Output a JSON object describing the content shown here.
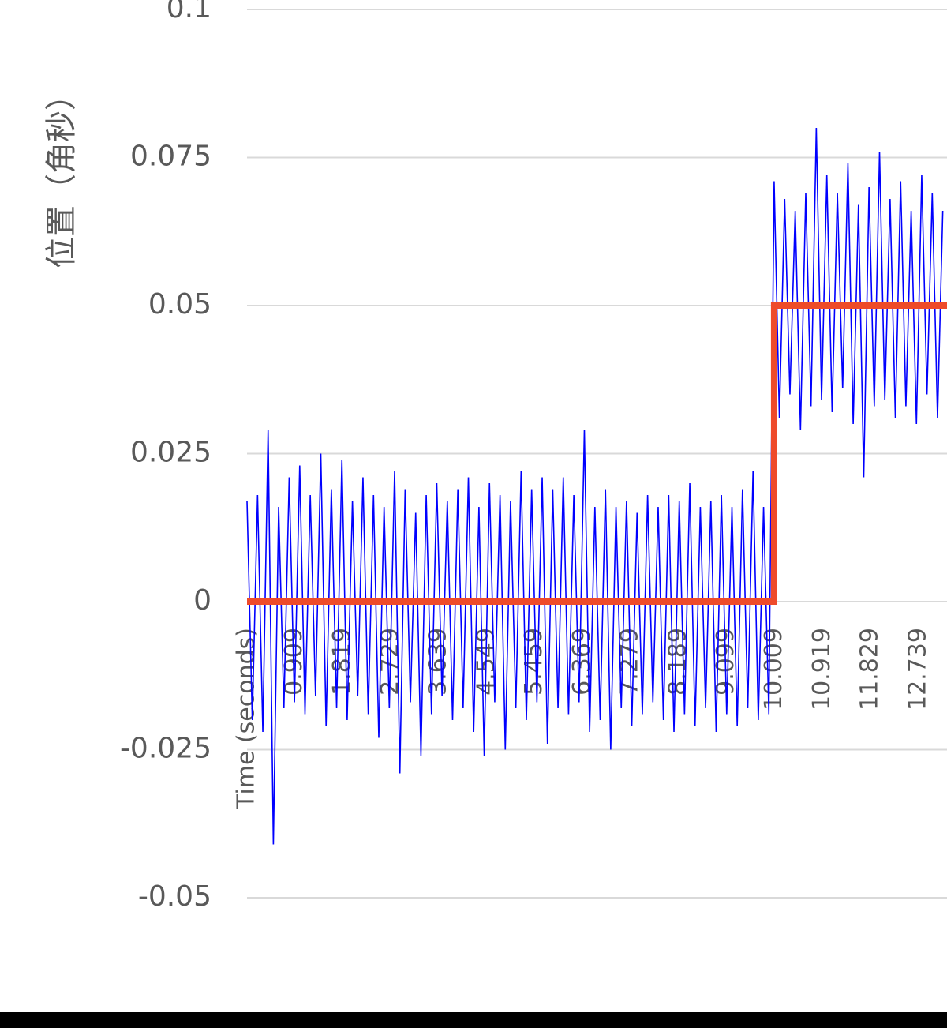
{
  "chart_data": {
    "type": "line",
    "y_label": "位置（角秒）",
    "xlim": [
      0,
      13.28
    ],
    "xticks": [
      {
        "value": 0,
        "label": "Time (seconds)"
      },
      0.909,
      1.819,
      2.729,
      3.639,
      4.549,
      5.459,
      6.369,
      7.279,
      8.189,
      9.099,
      10.009,
      10.919,
      11.829,
      12.739
    ],
    "ylim": [
      -0.05,
      0.1
    ],
    "yticks": [
      -0.05,
      -0.025,
      0,
      0.025,
      0.05,
      0.075,
      0.1
    ],
    "grid": true,
    "series": [
      {
        "color": "#0000ff",
        "x": [
          0,
          0.1,
          0.2,
          0.3,
          0.4,
          0.5,
          0.6,
          0.7,
          0.8,
          0.9,
          1,
          1.1,
          1.2,
          1.3,
          1.4,
          1.5,
          1.6,
          1.7,
          1.8,
          1.9,
          2,
          2.1,
          2.2,
          2.3,
          2.4,
          2.5,
          2.6,
          2.7,
          2.8,
          2.9,
          3,
          3.1,
          3.2,
          3.3,
          3.4,
          3.5,
          3.6,
          3.7,
          3.8,
          3.9,
          4,
          4.1,
          4.2,
          4.3,
          4.4,
          4.5,
          4.6,
          4.7,
          4.8,
          4.9,
          5,
          5.1,
          5.2,
          5.3,
          5.4,
          5.5,
          5.6,
          5.7,
          5.8,
          5.9,
          6,
          6.1,
          6.2,
          6.3,
          6.4,
          6.5,
          6.6,
          6.7,
          6.8,
          6.9,
          7,
          7.1,
          7.2,
          7.3,
          7.4,
          7.5,
          7.6,
          7.7,
          7.8,
          7.9,
          8,
          8.1,
          8.2,
          8.3,
          8.4,
          8.5,
          8.6,
          8.7,
          8.8,
          8.9,
          9,
          9.1,
          9.2,
          9.3,
          9.4,
          9.5,
          9.6,
          9.7,
          9.8,
          9.9,
          10,
          10.1,
          10.2,
          10.3,
          10.4,
          10.5,
          10.6,
          10.7,
          10.8,
          10.9,
          11,
          11.1,
          11.2,
          11.3,
          11.4,
          11.5,
          11.6,
          11.7,
          11.8,
          11.9,
          12,
          12.1,
          12.2,
          12.3,
          12.4,
          12.5,
          12.6,
          12.7,
          12.8,
          12.9,
          13,
          13.1,
          13.2
        ],
        "values": [
          0.017,
          -0.02,
          0.018,
          -0.022,
          0.029,
          -0.041,
          0.016,
          -0.018,
          0.021,
          -0.017,
          0.023,
          -0.019,
          0.018,
          -0.016,
          0.025,
          -0.021,
          0.019,
          -0.018,
          0.024,
          -0.02,
          0.017,
          -0.016,
          0.021,
          -0.019,
          0.018,
          -0.023,
          0.016,
          -0.018,
          0.022,
          -0.029,
          0.019,
          -0.017,
          0.015,
          -0.026,
          0.018,
          -0.019,
          0.02,
          -0.016,
          0.017,
          -0.02,
          0.019,
          -0.018,
          0.021,
          -0.022,
          0.016,
          -0.026,
          0.02,
          -0.017,
          0.018,
          -0.025,
          0.017,
          -0.018,
          0.022,
          -0.02,
          0.019,
          -0.017,
          0.021,
          -0.024,
          0.019,
          -0.018,
          0.021,
          -0.019,
          0.018,
          -0.017,
          0.029,
          -0.022,
          0.016,
          -0.02,
          0.019,
          -0.025,
          0.016,
          -0.018,
          0.017,
          -0.021,
          0.015,
          -0.019,
          0.018,
          -0.017,
          0.016,
          -0.02,
          0.018,
          -0.022,
          0.017,
          -0.019,
          0.02,
          -0.021,
          0.016,
          -0.018,
          0.017,
          -0.022,
          0.018,
          -0.019,
          0.016,
          -0.021,
          0.019,
          -0.018,
          0.022,
          -0.02,
          0.016,
          -0.019,
          0.071,
          0.031,
          0.068,
          0.035,
          0.066,
          0.029,
          0.069,
          0.033,
          0.08,
          0.034,
          0.072,
          0.032,
          0.069,
          0.036,
          0.074,
          0.03,
          0.067,
          0.021,
          0.07,
          0.033,
          0.076,
          0.034,
          0.068,
          0.031,
          0.071,
          0.033,
          0.066,
          0.03,
          0.072,
          0.035,
          0.069,
          0.031,
          0.066
        ]
      },
      {
        "color": "#ee4b2b",
        "x": [
          0,
          10,
          10,
          13.28
        ],
        "values": [
          0,
          0,
          0.05,
          0.05
        ]
      }
    ]
  }
}
